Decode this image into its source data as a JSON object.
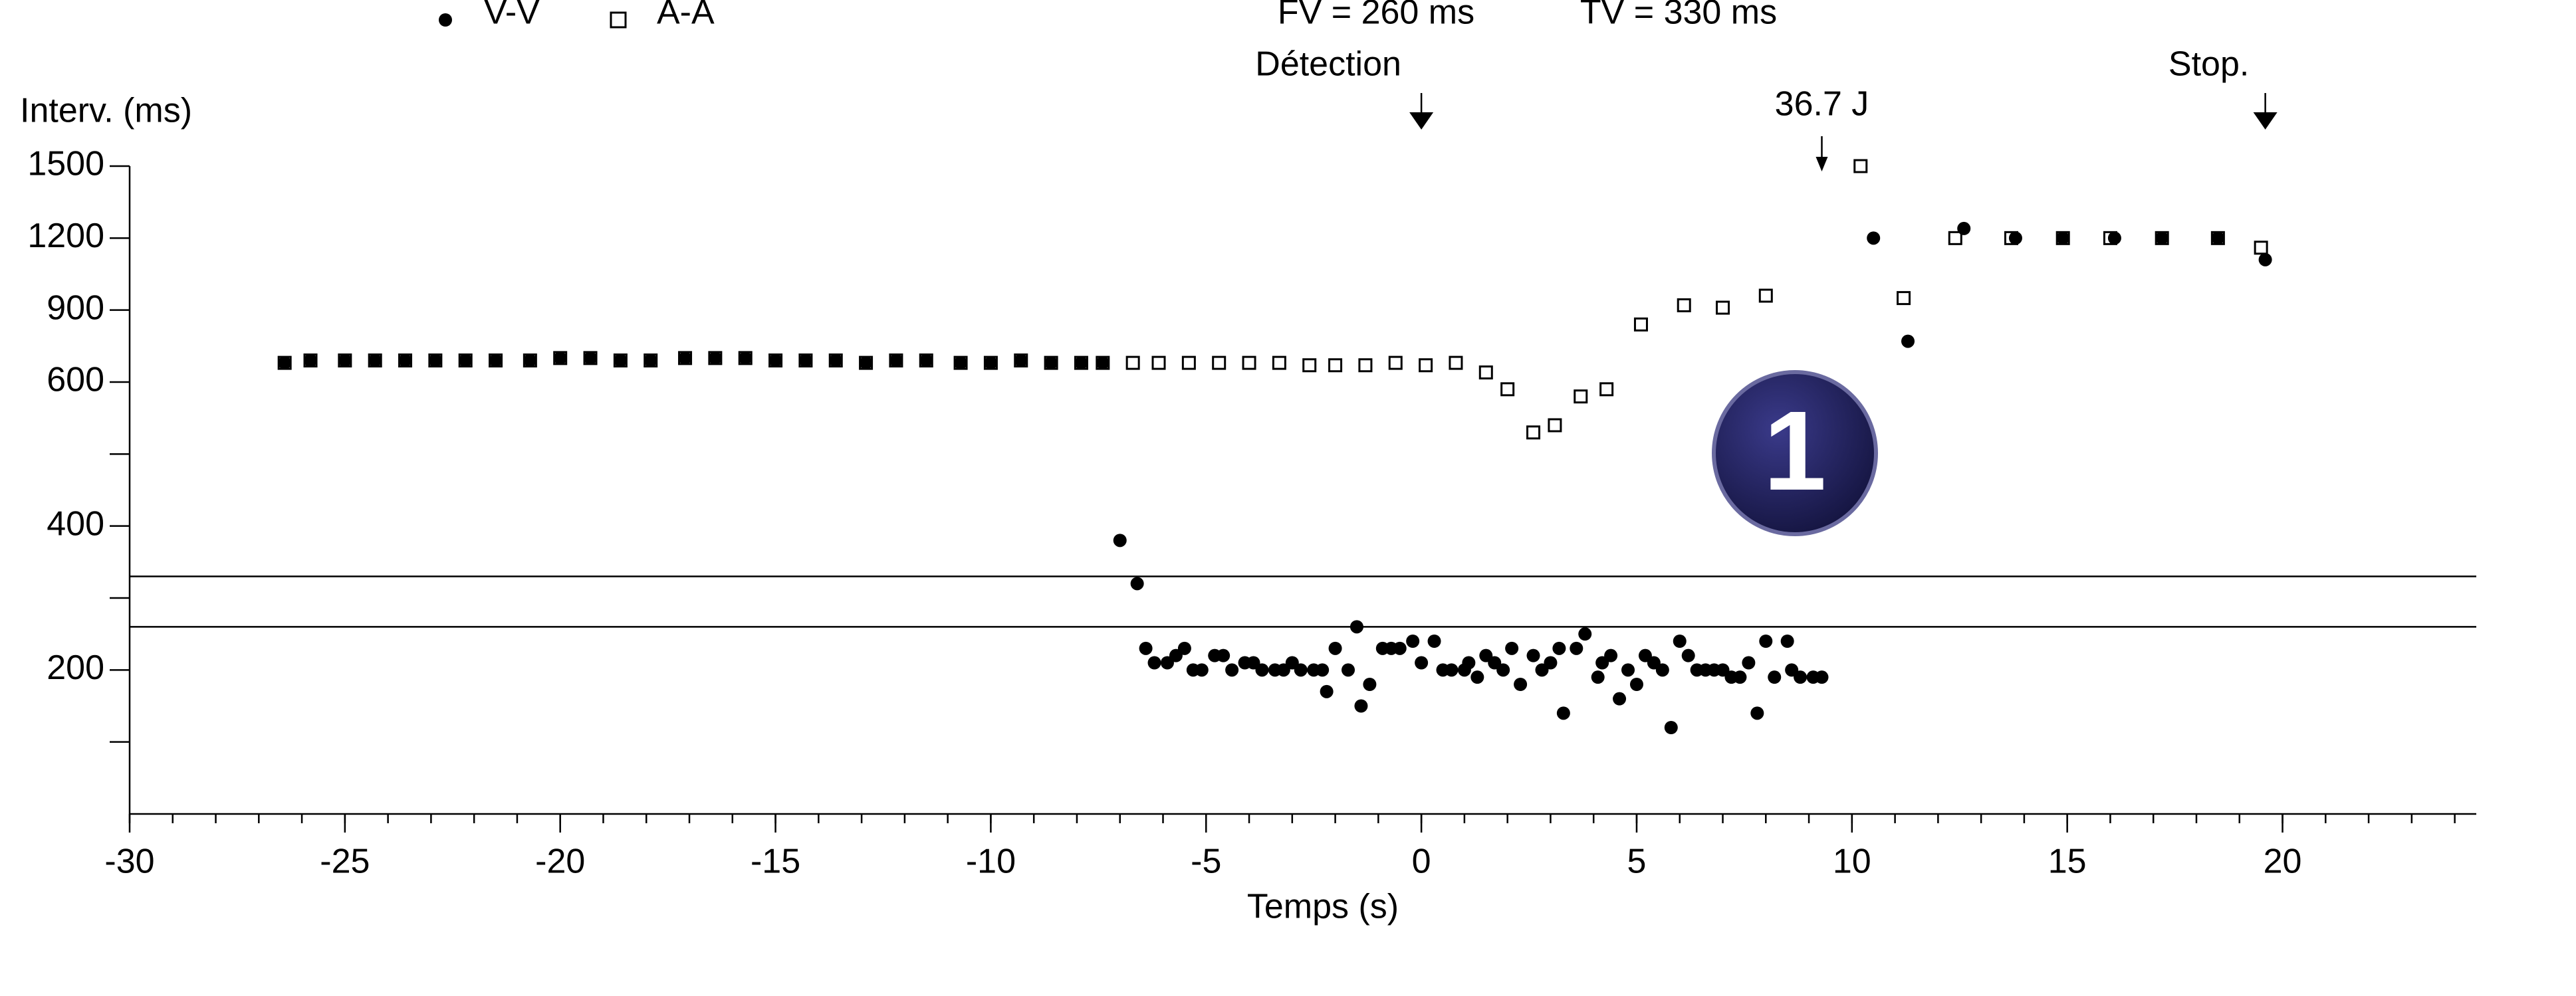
{
  "chart_data": {
    "type": "scatter",
    "xlabel": "Temps (s)",
    "ylabel": "Interv. (ms)",
    "xlim": [
      -30,
      24.5
    ],
    "xticks": [
      -30,
      -25,
      -20,
      -15,
      -10,
      -5,
      0,
      5,
      10,
      15,
      20
    ],
    "xminor_interval": 1,
    "ylim": [
      0,
      1500
    ],
    "yticks": [
      200,
      400,
      600,
      900,
      1200,
      1500
    ],
    "yminor_ticks": [
      100,
      300,
      500
    ],
    "yscale": "piecewise",
    "series": [
      {
        "name": "V-V",
        "marker": "dot",
        "color": "#000000",
        "x": [
          -26.4,
          -25.8,
          -25.0,
          -24.3,
          -23.6,
          -22.9,
          -22.2,
          -21.5,
          -20.7,
          -20.0,
          -19.3,
          -18.6,
          -17.9,
          -17.1,
          -16.4,
          -15.7,
          -15.0,
          -14.3,
          -13.6,
          -12.9,
          -12.2,
          -11.5,
          -10.7,
          -10.0,
          -9.3,
          -8.6,
          -7.9,
          -7.4,
          -7.0,
          -6.6,
          -6.4,
          -6.2,
          -5.9,
          -5.7,
          -5.5,
          -5.3,
          -5.1,
          -4.8,
          -4.6,
          -4.4,
          -4.1,
          -3.9,
          -3.7,
          -3.4,
          -3.2,
          -3.0,
          -2.8,
          -2.5,
          -2.3,
          -2.2,
          -2.0,
          -1.7,
          -1.5,
          -1.4,
          -1.2,
          -0.9,
          -0.7,
          -0.5,
          -0.2,
          0.0,
          0.3,
          0.5,
          0.7,
          1.0,
          1.1,
          1.3,
          1.5,
          1.7,
          1.9,
          2.1,
          2.3,
          2.6,
          2.8,
          3.0,
          3.2,
          3.3,
          3.6,
          3.8,
          4.1,
          4.2,
          4.4,
          4.6,
          4.8,
          5.0,
          5.2,
          5.4,
          5.6,
          5.8,
          6.0,
          6.2,
          6.4,
          6.6,
          6.8,
          7.0,
          7.2,
          7.4,
          7.6,
          7.8,
          8.0,
          8.2,
          8.5,
          8.6,
          8.8,
          9.1,
          9.3,
          10.5,
          11.3,
          12.6,
          13.8,
          14.9,
          16.1,
          17.2,
          18.5,
          19.6
        ],
        "values": [
          680,
          690,
          690,
          690,
          690,
          690,
          690,
          690,
          690,
          700,
          700,
          690,
          690,
          700,
          700,
          700,
          690,
          690,
          690,
          680,
          690,
          690,
          680,
          680,
          690,
          680,
          680,
          680,
          380,
          320,
          230,
          210,
          210,
          220,
          230,
          200,
          200,
          220,
          220,
          200,
          210,
          210,
          200,
          200,
          200,
          210,
          200,
          200,
          200,
          170,
          230,
          200,
          260,
          150,
          180,
          230,
          230,
          230,
          240,
          210,
          240,
          200,
          200,
          200,
          210,
          190,
          220,
          210,
          200,
          230,
          180,
          220,
          200,
          210,
          230,
          140,
          230,
          250,
          190,
          210,
          220,
          160,
          200,
          180,
          220,
          210,
          200,
          120,
          240,
          220,
          200,
          200,
          200,
          200,
          190,
          190,
          210,
          140,
          240,
          190,
          240,
          200,
          190,
          190,
          190,
          1200,
          770,
          1240,
          1200,
          1200,
          1200,
          1200,
          1200,
          1110
        ]
      },
      {
        "name": "A-A",
        "marker": "square-open",
        "color": "#000000",
        "x": [
          -26.4,
          -25.8,
          -25.0,
          -24.3,
          -23.6,
          -22.9,
          -22.2,
          -21.5,
          -20.7,
          -20.0,
          -19.3,
          -18.6,
          -17.9,
          -17.1,
          -16.4,
          -15.7,
          -15.0,
          -14.3,
          -13.6,
          -12.9,
          -12.2,
          -11.5,
          -10.7,
          -10.0,
          -9.3,
          -8.6,
          -7.9,
          -7.4,
          -6.7,
          -6.1,
          -5.4,
          -4.7,
          -4.0,
          -3.3,
          -2.6,
          -2.0,
          -1.3,
          -0.6,
          0.1,
          0.8,
          1.5,
          2.0,
          2.6,
          3.1,
          3.7,
          4.3,
          5.1,
          6.1,
          7.0,
          8.0,
          10.2,
          11.2,
          12.4,
          13.7,
          14.9,
          16.0,
          17.2,
          18.5,
          19.5
        ],
        "values": [
          680,
          690,
          690,
          690,
          690,
          690,
          690,
          690,
          690,
          700,
          700,
          690,
          690,
          700,
          700,
          700,
          690,
          690,
          690,
          680,
          690,
          690,
          680,
          680,
          690,
          680,
          680,
          680,
          680,
          680,
          680,
          680,
          680,
          680,
          670,
          670,
          670,
          680,
          670,
          680,
          640,
          590,
          530,
          540,
          580,
          590,
          840,
          920,
          910,
          960,
          1500,
          950,
          1200,
          1200,
          1200,
          1200,
          1200,
          1200,
          1160
        ]
      }
    ],
    "thresholds": [
      {
        "label": "FV = 260 ms",
        "value": 260
      },
      {
        "label": "TV = 330 ms",
        "value": 330
      }
    ],
    "annotations": [
      {
        "text": "Détection",
        "x": 0
      },
      {
        "text": "36.7 J",
        "x": 9.3
      },
      {
        "text": "Stop.",
        "x": 19.6
      }
    ],
    "badge": "1"
  }
}
